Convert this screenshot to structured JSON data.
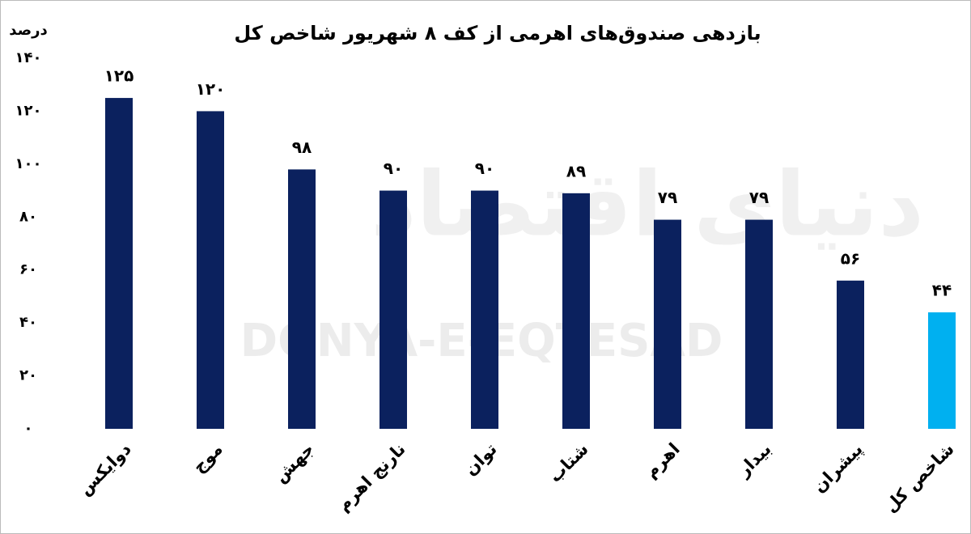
{
  "chart_data": {
    "type": "bar",
    "title": "بازدهی صندوق‌های اهرمی از کف ۸ شهریور شاخص کل",
    "y_label": "درصد",
    "watermark": "DONYA-E-EQTESAD",
    "watermark_fa": "دنیای اقتصاد",
    "categories": [
      "دوایکس",
      "موج",
      "جهش",
      "نارنج اهرم",
      "توان",
      "شتاب",
      "اهرم",
      "بیدار",
      "پیشران",
      "شاخص کل"
    ],
    "values": [
      125,
      120,
      98,
      90,
      90,
      89,
      79,
      79,
      56,
      44
    ],
    "value_labels": [
      "۱۲۵",
      "۱۲۰",
      "۹۸",
      "۹۰",
      "۹۰",
      "۸۹",
      "۷۹",
      "۷۹",
      "۵۶",
      "۴۴"
    ],
    "colors": [
      "#0b215e",
      "#0b215e",
      "#0b215e",
      "#0b215e",
      "#0b215e",
      "#0b215e",
      "#0b215e",
      "#0b215e",
      "#0b215e",
      "#00b0f0"
    ],
    "ylim": [
      0,
      140
    ],
    "yticks": [
      {
        "value": 0,
        "label": "۰"
      },
      {
        "value": 20,
        "label": "۲۰"
      },
      {
        "value": 40,
        "label": "۴۰"
      },
      {
        "value": 60,
        "label": "۶۰"
      },
      {
        "value": 80,
        "label": "۸۰"
      },
      {
        "value": 100,
        "label": "۱۰۰"
      },
      {
        "value": 120,
        "label": "۱۲۰"
      },
      {
        "value": 140,
        "label": "۱۴۰"
      }
    ],
    "grid": false
  }
}
